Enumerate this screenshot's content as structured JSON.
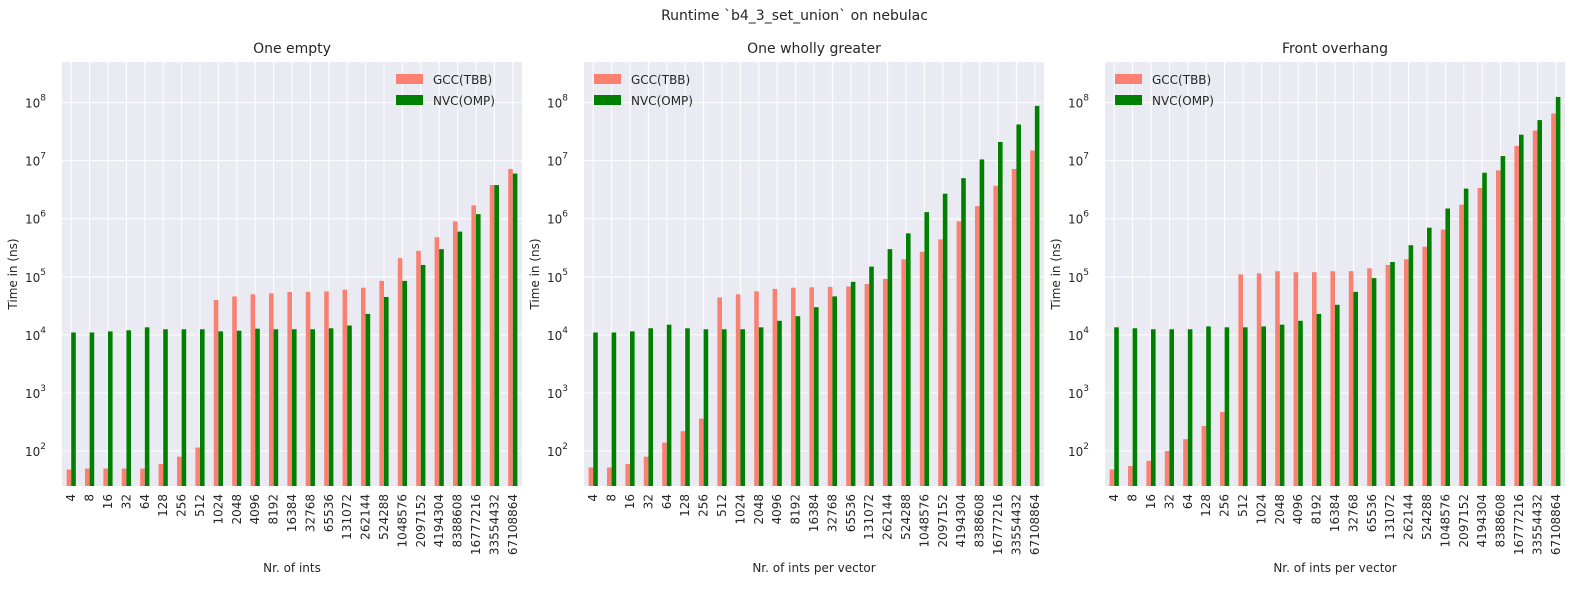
{
  "figure": {
    "title": "Runtime `b4_3_set_union` on nebulac"
  },
  "colors": {
    "GCC(TBB)": "#fa8072",
    "NVC(OMP)": "#008000",
    "plot_bg": "#eaeaf2",
    "grid": "#ffffff"
  },
  "chart_data": [
    {
      "type": "bar",
      "title": "One empty",
      "xlabel": "Nr. of ints",
      "ylabel": "Time in (ns)",
      "yscale": "log",
      "ylim": [
        25,
        500000000
      ],
      "yticks": [
        {
          "v": 100,
          "label": "10",
          "exp": "2"
        },
        {
          "v": 1000,
          "label": "10",
          "exp": "3"
        },
        {
          "v": 10000,
          "label": "10",
          "exp": "4"
        },
        {
          "v": 100000,
          "label": "10",
          "exp": "5"
        },
        {
          "v": 1000000,
          "label": "10",
          "exp": "6"
        },
        {
          "v": 10000000,
          "label": "10",
          "exp": "7"
        },
        {
          "v": 100000000,
          "label": "10",
          "exp": "8"
        }
      ],
      "legend_loc": "upper right",
      "grid": true,
      "categories": [
        "4",
        "8",
        "16",
        "32",
        "64",
        "128",
        "256",
        "512",
        "1024",
        "2048",
        "4096",
        "8192",
        "16384",
        "32768",
        "65536",
        "131072",
        "262144",
        "524288",
        "1048576",
        "2097152",
        "4194304",
        "8388608",
        "16777216",
        "33554432",
        "67108864"
      ],
      "series": [
        {
          "name": "GCC(TBB)",
          "values": [
            48,
            50,
            50,
            50,
            50,
            60,
            80,
            115,
            40000,
            46000,
            50000,
            52000,
            55000,
            55000,
            56000,
            60000,
            65000,
            85000,
            210000,
            280000,
            480000,
            900000,
            1700000,
            3800000,
            7200000
          ]
        },
        {
          "name": "NVC(OMP)",
          "values": [
            11000,
            11000,
            11500,
            12000,
            13500,
            12500,
            12500,
            12500,
            11500,
            11800,
            12800,
            12500,
            12500,
            12500,
            13000,
            14500,
            23000,
            45000,
            85000,
            160000,
            300000,
            600000,
            1200000,
            3800000,
            6000000
          ]
        }
      ]
    },
    {
      "type": "bar",
      "title": "One wholly greater",
      "xlabel": "Nr. of ints per vector",
      "ylabel": "Time in (ns)",
      "yscale": "log",
      "ylim": [
        25,
        500000000
      ],
      "yticks": [
        {
          "v": 100,
          "label": "10",
          "exp": "2"
        },
        {
          "v": 1000,
          "label": "10",
          "exp": "3"
        },
        {
          "v": 10000,
          "label": "10",
          "exp": "4"
        },
        {
          "v": 100000,
          "label": "10",
          "exp": "5"
        },
        {
          "v": 1000000,
          "label": "10",
          "exp": "6"
        },
        {
          "v": 10000000,
          "label": "10",
          "exp": "7"
        },
        {
          "v": 100000000,
          "label": "10",
          "exp": "8"
        }
      ],
      "legend_loc": "upper left",
      "grid": true,
      "categories": [
        "4",
        "8",
        "16",
        "32",
        "64",
        "128",
        "256",
        "512",
        "1024",
        "2048",
        "4096",
        "8192",
        "16384",
        "32768",
        "65536",
        "131072",
        "262144",
        "524288",
        "1048576",
        "2097152",
        "4194304",
        "8388608",
        "16777216",
        "33554432",
        "67108864"
      ],
      "series": [
        {
          "name": "GCC(TBB)",
          "values": [
            52,
            52,
            60,
            80,
            140,
            220,
            360,
            44000,
            50000,
            56000,
            62000,
            65000,
            66000,
            67000,
            68000,
            75000,
            92000,
            200000,
            270000,
            440000,
            900000,
            1650000,
            3700000,
            7200000,
            15000000
          ]
        },
        {
          "name": "NVC(OMP)",
          "values": [
            11000,
            11000,
            11500,
            13000,
            15000,
            13000,
            12500,
            12500,
            12500,
            13500,
            17500,
            21000,
            30000,
            46000,
            82000,
            150000,
            300000,
            560000,
            1300000,
            2700000,
            5000000,
            10500000,
            21000000,
            42000000,
            88000000
          ]
        }
      ]
    },
    {
      "type": "bar",
      "title": "Front overhang",
      "xlabel": "Nr. of ints per vector",
      "ylabel": "Time in (ns)",
      "yscale": "log",
      "ylim": [
        25,
        500000000
      ],
      "yticks": [
        {
          "v": 100,
          "label": "10",
          "exp": "2"
        },
        {
          "v": 1000,
          "label": "10",
          "exp": "3"
        },
        {
          "v": 10000,
          "label": "10",
          "exp": "4"
        },
        {
          "v": 100000,
          "label": "10",
          "exp": "5"
        },
        {
          "v": 1000000,
          "label": "10",
          "exp": "6"
        },
        {
          "v": 10000000,
          "label": "10",
          "exp": "7"
        },
        {
          "v": 100000000,
          "label": "10",
          "exp": "8"
        }
      ],
      "legend_loc": "upper left",
      "grid": true,
      "categories": [
        "4",
        "8",
        "16",
        "32",
        "64",
        "128",
        "256",
        "512",
        "1024",
        "2048",
        "4096",
        "8192",
        "16384",
        "32768",
        "65536",
        "131072",
        "262144",
        "524288",
        "1048576",
        "2097152",
        "4194304",
        "8388608",
        "16777216",
        "33554432",
        "67108864"
      ],
      "series": [
        {
          "name": "GCC(TBB)",
          "values": [
            48,
            55,
            68,
            100,
            160,
            270,
            470,
            110000,
            115000,
            125000,
            120000,
            120000,
            125000,
            125000,
            140000,
            160000,
            200000,
            330000,
            650000,
            1750000,
            3400000,
            6800000,
            18000000,
            33000000,
            65000000
          ]
        },
        {
          "name": "NVC(OMP)",
          "values": [
            13500,
            13000,
            12500,
            12500,
            12500,
            14000,
            13500,
            13500,
            14000,
            15000,
            17500,
            23000,
            33000,
            55000,
            95000,
            180000,
            350000,
            700000,
            1500000,
            3300000,
            6200000,
            12000000,
            28000000,
            50000000,
            125000000
          ]
        }
      ]
    }
  ]
}
